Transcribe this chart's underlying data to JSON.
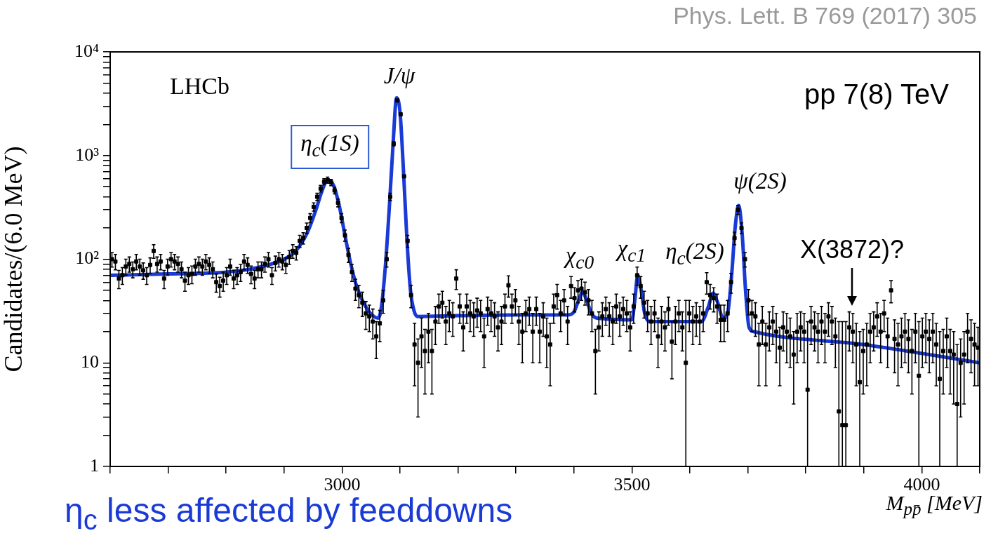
{
  "chart_data": {
    "type": "scatter",
    "xlabel": "M$_{pp̄}$ [MeV]",
    "ylabel": "Candidates/(6.0 MeV)",
    "xlim": [
      2600,
      4100
    ],
    "xticks": [
      {
        "value": 2600,
        "label": null
      },
      {
        "value": 2700,
        "label": null
      },
      {
        "value": 2800,
        "label": null
      },
      {
        "value": 2900,
        "label": null
      },
      3000,
      {
        "value": 3100,
        "label": null
      },
      {
        "value": 3200,
        "label": null
      },
      {
        "value": 3300,
        "label": null
      },
      {
        "value": 3400,
        "label": null
      },
      3500,
      {
        "value": 3600,
        "label": null
      },
      {
        "value": 3700,
        "label": null
      },
      {
        "value": 3800,
        "label": null
      },
      {
        "value": 3900,
        "label": null
      },
      4000,
      {
        "value": 4100,
        "label": null
      }
    ],
    "ylim": [
      1,
      10000
    ],
    "yticks": [
      1,
      {
        "value": 2,
        "label": null
      },
      {
        "value": 3,
        "label": null
      },
      {
        "value": 4,
        "label": null
      },
      {
        "value": 5,
        "label": null
      },
      {
        "value": 6,
        "label": null
      },
      {
        "value": 7,
        "label": null
      },
      {
        "value": 8,
        "label": null
      },
      {
        "value": 9,
        "label": null
      },
      10,
      {
        "value": 20,
        "label": null
      },
      {
        "value": 30,
        "label": null
      },
      {
        "value": 40,
        "label": null
      },
      {
        "value": 50,
        "label": null
      },
      {
        "value": 60,
        "label": null
      },
      {
        "value": 70,
        "label": null
      },
      {
        "value": 80,
        "label": null
      },
      {
        "value": 90,
        "label": null
      },
      {
        "value": 100,
        "label": "10²"
      },
      {
        "value": 200,
        "label": null
      },
      {
        "value": 300,
        "label": null
      },
      {
        "value": 400,
        "label": null
      },
      {
        "value": 500,
        "label": null
      },
      {
        "value": 600,
        "label": null
      },
      {
        "value": 700,
        "label": null
      },
      {
        "value": 800,
        "label": null
      },
      {
        "value": 900,
        "label": null
      },
      {
        "value": 1000,
        "label": "10³"
      },
      {
        "value": 2000,
        "label": null
      },
      {
        "value": 3000,
        "label": null
      },
      {
        "value": 4000,
        "label": null
      },
      {
        "value": 5000,
        "label": null
      },
      {
        "value": 6000,
        "label": null
      },
      {
        "value": 7000,
        "label": null
      },
      {
        "value": 8000,
        "label": null
      },
      {
        "value": 9000,
        "label": null
      },
      {
        "value": 10000,
        "label": "10⁴"
      }
    ],
    "log": "y",
    "grid": false,
    "legend": false,
    "series": [
      {
        "marker": "square",
        "color": "#000000",
        "x": [
          2603,
          2609,
          2615,
          2621,
          2627,
          2633,
          2639,
          2645,
          2651,
          2657,
          2663,
          2669,
          2675,
          2681,
          2687,
          2693,
          2699,
          2705,
          2711,
          2717,
          2723,
          2729,
          2735,
          2741,
          2747,
          2753,
          2759,
          2765,
          2771,
          2777,
          2783,
          2789,
          2795,
          2801,
          2807,
          2813,
          2819,
          2825,
          2831,
          2837,
          2843,
          2849,
          2855,
          2861,
          2867,
          2873,
          2879,
          2885,
          2891,
          2897,
          2903,
          2909,
          2915,
          2921,
          2927,
          2933,
          2939,
          2945,
          2951,
          2957,
          2963,
          2969,
          2975,
          2981,
          2987,
          2993,
          2999,
          3005,
          3011,
          3017,
          3023,
          3029,
          3035,
          3041,
          3047,
          3053,
          3059,
          3065,
          3071,
          3077,
          3083,
          3089,
          3095,
          3101,
          3107,
          3113,
          3119,
          3125,
          3131,
          3137,
          3143,
          3149,
          3155,
          3161,
          3167,
          3173,
          3179,
          3185,
          3191,
          3197,
          3203,
          3209,
          3215,
          3221,
          3227,
          3233,
          3239,
          3245,
          3251,
          3257,
          3263,
          3269,
          3275,
          3281,
          3287,
          3293,
          3299,
          3305,
          3311,
          3317,
          3323,
          3329,
          3335,
          3341,
          3347,
          3353,
          3359,
          3365,
          3371,
          3377,
          3383,
          3389,
          3395,
          3401,
          3407,
          3413,
          3419,
          3425,
          3431,
          3437,
          3443,
          3449,
          3455,
          3461,
          3467,
          3473,
          3479,
          3485,
          3491,
          3497,
          3503,
          3509,
          3515,
          3521,
          3527,
          3533,
          3539,
          3545,
          3551,
          3557,
          3563,
          3569,
          3575,
          3581,
          3587,
          3593,
          3599,
          3605,
          3611,
          3617,
          3623,
          3629,
          3635,
          3641,
          3647,
          3653,
          3659,
          3665,
          3671,
          3677,
          3683,
          3689,
          3695,
          3701,
          3707,
          3713,
          3719,
          3725,
          3731,
          3737,
          3743,
          3749,
          3755,
          3761,
          3767,
          3773,
          3779,
          3785,
          3791,
          3797,
          3803,
          3809,
          3815,
          3821,
          3827,
          3833,
          3839,
          3845,
          3851,
          3857,
          3863,
          3869,
          3875,
          3881,
          3887,
          3893,
          3899,
          3905,
          3911,
          3917,
          3923,
          3929,
          3935,
          3941,
          3947,
          3953,
          3959,
          3965,
          3971,
          3977,
          3983,
          3989,
          3995,
          4001,
          4007,
          4013,
          4019,
          4025,
          4031,
          4037,
          4043,
          4049,
          4055,
          4061,
          4067,
          4073,
          4079,
          4085,
          4091,
          4097
        ],
        "values": [
          100,
          95,
          65,
          70,
          85,
          90,
          80,
          95,
          85,
          78,
          70,
          88,
          120,
          90,
          95,
          65,
          85,
          100,
          95,
          90,
          80,
          62,
          70,
          72,
          85,
          90,
          85,
          95,
          88,
          80,
          60,
          55,
          62,
          70,
          85,
          65,
          70,
          75,
          95,
          88,
          72,
          65,
          80,
          80,
          90,
          100,
          70,
          92,
          100,
          95,
          88,
          105,
          120,
          115,
          150,
          160,
          200,
          250,
          320,
          400,
          480,
          560,
          580,
          550,
          460,
          350,
          250,
          170,
          110,
          75,
          52,
          45,
          38,
          30,
          28,
          25,
          18,
          24,
          40,
          100,
          400,
          1300,
          3400,
          2500,
          630,
          150,
          45,
          15,
          10,
          18,
          13,
          20,
          13,
          25,
          35,
          38,
          25,
          30,
          28,
          65,
          35,
          22,
          35,
          30,
          28,
          32,
          30,
          18,
          33,
          30,
          28,
          22,
          25,
          35,
          56,
          35,
          40,
          25,
          20,
          30,
          33,
          20,
          33,
          20,
          28,
          18,
          15,
          35,
          45,
          30,
          40,
          25,
          55,
          42,
          50,
          52,
          48,
          40,
          30,
          13,
          22,
          28,
          33,
          28,
          25,
          35,
          28,
          33,
          30,
          22,
          35,
          70,
          55,
          38,
          30,
          25,
          30,
          18,
          25,
          22,
          33,
          16,
          25,
          30,
          22,
          10,
          30,
          25,
          28,
          25,
          30,
          60,
          45,
          42,
          35,
          26,
          26,
          30,
          60,
          160,
          300,
          200,
          100,
          40,
          30,
          28,
          15,
          25,
          15,
          22,
          25,
          20,
          14,
          22,
          20,
          18,
          12,
          20,
          22,
          20,
          5.5,
          25,
          22,
          20,
          25,
          20,
          28,
          25,
          18,
          3.4,
          2.5,
          2.5,
          22,
          20,
          15,
          6.5,
          13,
          15,
          20,
          22,
          28,
          20,
          30,
          18,
          50,
          17,
          15,
          18,
          20,
          17,
          13,
          20,
          7.5,
          18,
          20,
          17,
          20,
          15,
          7,
          13,
          18,
          13,
          12,
          4,
          10,
          12,
          20,
          17,
          15,
          14
        ],
        "errors": [
          16,
          16,
          13,
          13,
          15,
          15,
          14,
          16,
          15,
          14,
          13,
          15,
          18,
          15,
          16,
          13,
          15,
          16,
          16,
          15,
          14,
          13,
          13,
          14,
          15,
          15,
          15,
          16,
          15,
          14,
          12,
          12,
          13,
          13,
          15,
          13,
          13,
          14,
          16,
          15,
          14,
          13,
          14,
          14,
          15,
          16,
          13,
          15,
          16,
          16,
          15,
          16,
          18,
          17,
          20,
          20,
          23,
          25,
          29,
          32,
          35,
          38,
          39,
          38,
          34,
          30,
          25,
          21,
          17,
          14,
          12,
          11,
          10,
          9,
          8,
          8,
          7,
          8,
          10,
          16,
          32,
          58,
          null,
          null,
          null,
          20,
          11,
          9,
          7,
          9,
          8,
          10,
          8,
          10,
          11,
          11,
          10,
          10,
          10,
          14,
          11,
          9,
          11,
          10,
          10,
          10,
          10,
          9,
          10,
          10,
          10,
          9,
          10,
          11,
          13,
          11,
          11,
          10,
          10,
          10,
          10,
          10,
          10,
          10,
          10,
          9,
          9,
          11,
          12,
          10,
          11,
          10,
          13,
          11,
          12,
          12,
          12,
          11,
          10,
          8,
          9,
          10,
          10,
          10,
          10,
          11,
          10,
          10,
          10,
          9,
          11,
          14,
          13,
          11,
          10,
          10,
          10,
          9,
          10,
          9,
          10,
          9,
          10,
          10,
          9,
          [
            1,
            40
          ],
          10,
          10,
          10,
          10,
          10,
          14,
          12,
          11,
          11,
          10,
          10,
          10,
          13,
          22,
          30,
          24,
          16,
          11,
          10,
          10,
          9,
          10,
          9,
          9,
          10,
          10,
          8,
          9,
          10,
          9,
          8,
          10,
          9,
          10,
          [
            1,
            25
          ],
          10,
          9,
          10,
          10,
          10,
          10,
          10,
          9,
          [
            1,
            25
          ],
          [
            1,
            25
          ],
          [
            1,
            25
          ],
          9,
          10,
          9,
          [
            1,
            20
          ],
          8,
          9,
          10,
          9,
          10,
          10,
          10,
          9,
          12,
          9,
          9,
          9,
          10,
          9,
          8,
          10,
          [
            1,
            25
          ],
          9,
          10,
          9,
          10,
          9,
          [
            1,
            20
          ],
          8,
          9,
          8,
          8,
          [
            1,
            15
          ],
          7,
          8,
          10,
          9,
          9,
          8
        ]
      },
      {
        "type": "line",
        "marker": "none",
        "color": "#1a3ad6",
        "x": [
          2600,
          2700,
          2800,
          2850,
          2900,
          2920,
          2940,
          2955,
          2965,
          2975,
          2985,
          2995,
          3005,
          3015,
          3025,
          3035,
          3045,
          3055,
          3062,
          3068,
          3075,
          3082,
          3088,
          3094,
          3100,
          3106,
          3112,
          3118,
          3124,
          3130,
          3200,
          3300,
          3390,
          3400,
          3408,
          3415,
          3422,
          3430,
          3440,
          3500,
          3505,
          3510,
          3516,
          3522,
          3530,
          3620,
          3632,
          3640,
          3648,
          3657,
          3665,
          3672,
          3678,
          3684,
          3690,
          3696,
          3702,
          3710,
          3900,
          4100
        ],
        "values": [
          70,
          72,
          75,
          82,
          100,
          120,
          180,
          300,
          450,
          580,
          520,
          330,
          170,
          90,
          55,
          40,
          32,
          28,
          27,
          35,
          90,
          350,
          1300,
          3600,
          2600,
          700,
          150,
          50,
          32,
          28,
          28.5,
          29,
          29,
          31,
          40,
          48,
          40,
          30,
          27,
          26,
          40,
          70,
          50,
          30,
          25,
          25,
          35,
          47,
          38,
          27,
          30,
          70,
          200,
          330,
          180,
          50,
          22,
          20,
          15,
          10
        ]
      }
    ],
    "annotations": [
      "Phys. Lett. B 769 (2017) 305",
      "LHCb",
      "pp 7(8) TeV",
      "η$_{c}$(1S)",
      "J/ψ",
      "χ$_{c0}$",
      "χ$_{c1}$",
      "η$_{c}$(2S)",
      "ψ(2S)",
      "X(3872)?",
      "η$_{c}$ less affected by feeddowns"
    ]
  }
}
